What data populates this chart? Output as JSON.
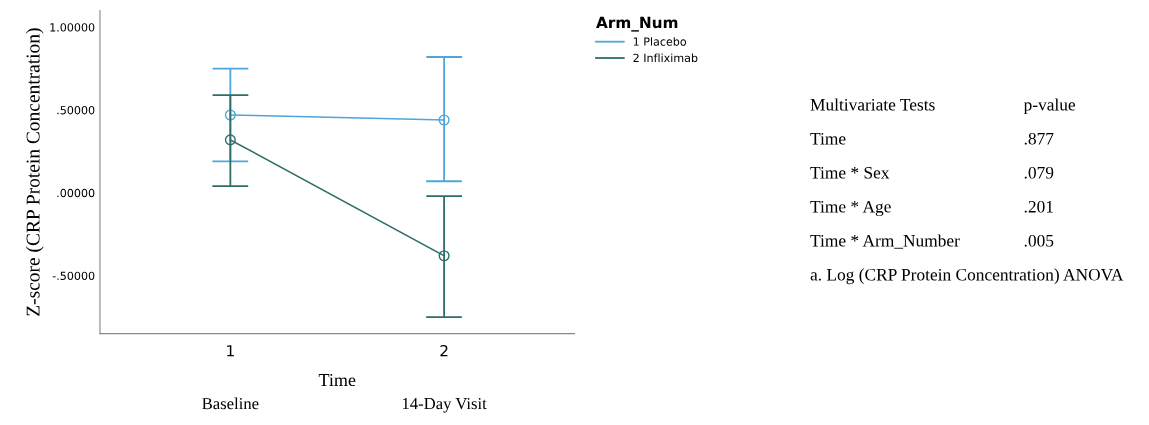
{
  "chart_data": [
    {
      "type": "line",
      "xlabel": "Time",
      "ylabel": "Z-score (CRP Protein Concentration)",
      "legend_title": "Arm_Num",
      "categories": [
        "1",
        "2"
      ],
      "series": [
        {
          "name": "1 Placebo",
          "color": "#4ea6dc",
          "values": [
            0.47,
            0.44
          ],
          "errors": [
            [
              0.19,
              0.75
            ],
            [
              0.07,
              0.82
            ]
          ]
        },
        {
          "name": "2 Infliximab",
          "color": "#2e6e6a",
          "values": [
            0.32,
            -0.38
          ],
          "errors": [
            [
              0.04,
              0.59
            ],
            [
              -0.75,
              -0.02
            ]
          ]
        }
      ],
      "ylim": [
        -0.85,
        1.1
      ],
      "yticks": [
        {
          "value": -0.5,
          "label": "-.50000"
        },
        {
          "value": 0,
          "label": ".00000"
        },
        {
          "value": 0.5,
          "label": ".50000"
        },
        {
          "value": 1,
          "label": "1.00000"
        }
      ],
      "marker": "circle",
      "line_style": "solid",
      "grid": false,
      "legend": "top right",
      "annotations": [
        "Baseline",
        "14-Day Visit"
      ]
    },
    {
      "type": "other",
      "annotations": [
        "Multivariate Tests",
        "p-value",
        "Time",
        ".877",
        "Time * Sex",
        ".079",
        "Time * Age",
        ".201",
        "Time * Arm_Number",
        ".005",
        "a. Log (CRP Protein Concentration) ANOVA"
      ]
    }
  ]
}
